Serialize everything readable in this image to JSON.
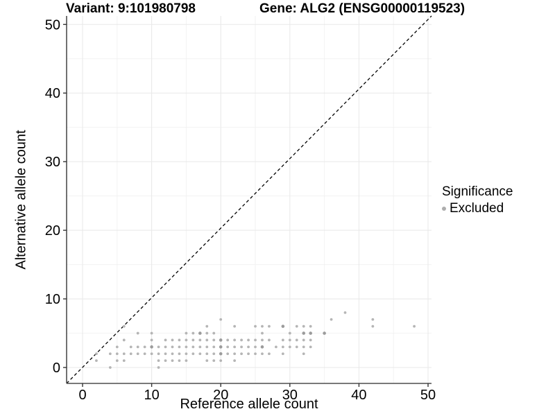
{
  "chart_data": {
    "type": "scatter",
    "title_variant": "Variant: 9:101980798",
    "title_gene": "Gene: ALG2 (ENSG00000119523)",
    "xlabel": "Reference allele count",
    "ylabel": "Alternative allele count",
    "xlim": [
      -2.31,
      50.5
    ],
    "ylim": [
      -2.32,
      51.24
    ],
    "xticks": [
      0,
      10,
      20,
      30,
      40,
      50
    ],
    "yticks": [
      0,
      10,
      20,
      30,
      40,
      50
    ],
    "xticks_minor": [
      5,
      15,
      25,
      35,
      45
    ],
    "yticks_minor": [
      5,
      15,
      25,
      35,
      45
    ],
    "grid": true,
    "identity_line": {
      "type": "y=x",
      "style": "dashed",
      "color": "#000000"
    },
    "legend": {
      "position": "right",
      "title": "Significance",
      "entries": [
        {
          "label": "Excluded",
          "color": "#adadad"
        }
      ]
    },
    "point_color": "#b5b5b5",
    "point_color_dense": "#9b9b9b",
    "series": [
      {
        "name": "Excluded",
        "points": [
          [
            4,
            0
          ],
          [
            11,
            0
          ],
          [
            2,
            1
          ],
          [
            5,
            1
          ],
          [
            6,
            1
          ],
          [
            11,
            1
          ],
          [
            12,
            1
          ],
          [
            13,
            1
          ],
          [
            14,
            1
          ],
          [
            15,
            1
          ],
          [
            18,
            1
          ],
          [
            19,
            1
          ],
          [
            20,
            1
          ],
          [
            22,
            1
          ],
          [
            2,
            2
          ],
          [
            4,
            2
          ],
          [
            5,
            2
          ],
          [
            6,
            2
          ],
          [
            7,
            2
          ],
          [
            8,
            2
          ],
          [
            9,
            2
          ],
          [
            10,
            2
          ],
          [
            11,
            2
          ],
          [
            12,
            2
          ],
          [
            13,
            2
          ],
          [
            14,
            2
          ],
          [
            15,
            2
          ],
          [
            16,
            2
          ],
          [
            17,
            2
          ],
          [
            18,
            2
          ],
          [
            19,
            2
          ],
          [
            20,
            2,
            2
          ],
          [
            21,
            2
          ],
          [
            22,
            2
          ],
          [
            23,
            2
          ],
          [
            24,
            2
          ],
          [
            25,
            2
          ],
          [
            26,
            2
          ],
          [
            27,
            2
          ],
          [
            29,
            2
          ],
          [
            32,
            2
          ],
          [
            5,
            3
          ],
          [
            7,
            3
          ],
          [
            8,
            3
          ],
          [
            9,
            3
          ],
          [
            10,
            3,
            2
          ],
          [
            11,
            3
          ],
          [
            12,
            3
          ],
          [
            13,
            3
          ],
          [
            14,
            3
          ],
          [
            15,
            3
          ],
          [
            16,
            3
          ],
          [
            17,
            3
          ],
          [
            18,
            3
          ],
          [
            19,
            3
          ],
          [
            20,
            3,
            2
          ],
          [
            21,
            3
          ],
          [
            22,
            3
          ],
          [
            23,
            3
          ],
          [
            24,
            3
          ],
          [
            25,
            3
          ],
          [
            26,
            3,
            2
          ],
          [
            28,
            3
          ],
          [
            29,
            3
          ],
          [
            30,
            3
          ],
          [
            31,
            3
          ],
          [
            32,
            3
          ],
          [
            33,
            3
          ],
          [
            6,
            4
          ],
          [
            10,
            4
          ],
          [
            12,
            4
          ],
          [
            13,
            4
          ],
          [
            14,
            4
          ],
          [
            15,
            4
          ],
          [
            16,
            4
          ],
          [
            17,
            4
          ],
          [
            18,
            4
          ],
          [
            19,
            4
          ],
          [
            20,
            4,
            2
          ],
          [
            21,
            4
          ],
          [
            22,
            4
          ],
          [
            23,
            4
          ],
          [
            24,
            4
          ],
          [
            25,
            4
          ],
          [
            26,
            4
          ],
          [
            27,
            4
          ],
          [
            29,
            4
          ],
          [
            30,
            4
          ],
          [
            31,
            4
          ],
          [
            32,
            4
          ],
          [
            33,
            4
          ],
          [
            8,
            5
          ],
          [
            10,
            5
          ],
          [
            15,
            5
          ],
          [
            16,
            5
          ],
          [
            17,
            5,
            2
          ],
          [
            18,
            5
          ],
          [
            19,
            5
          ],
          [
            26,
            5
          ],
          [
            30,
            5
          ],
          [
            32,
            5,
            2
          ],
          [
            33,
            5,
            2
          ],
          [
            35,
            5,
            2
          ],
          [
            6,
            6
          ],
          [
            18,
            6
          ],
          [
            22,
            6
          ],
          [
            25,
            6
          ],
          [
            26,
            6
          ],
          [
            27,
            6
          ],
          [
            29,
            6,
            2
          ],
          [
            31,
            6
          ],
          [
            32,
            6
          ],
          [
            33,
            6
          ],
          [
            42,
            6
          ],
          [
            48,
            6
          ],
          [
            20,
            7
          ],
          [
            36,
            7
          ],
          [
            42,
            7
          ],
          [
            38,
            8
          ]
        ]
      }
    ]
  }
}
